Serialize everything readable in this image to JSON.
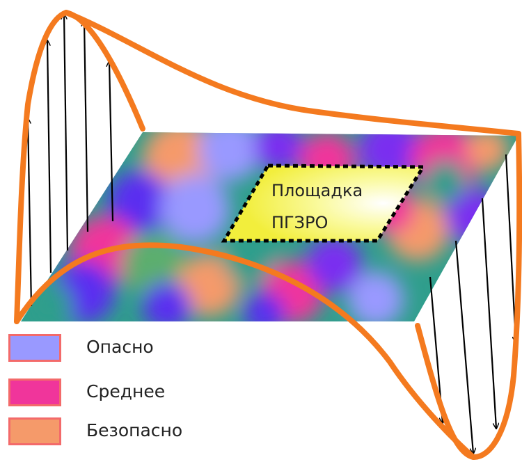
{
  "site": {
    "line1": "Площадка",
    "line2": "ПГЗРО"
  },
  "legend": [
    {
      "label": "Опасно",
      "color": "#9999ff"
    },
    {
      "label": "Среднее",
      "color": "#f0359b"
    },
    {
      "label": "Безопасно",
      "color": "#f59a6a"
    }
  ],
  "colors": {
    "curve": "#f47a1f",
    "arrows": "#000000",
    "site_fill": "#f5f34a",
    "swatch_border": "#f36a6a"
  }
}
